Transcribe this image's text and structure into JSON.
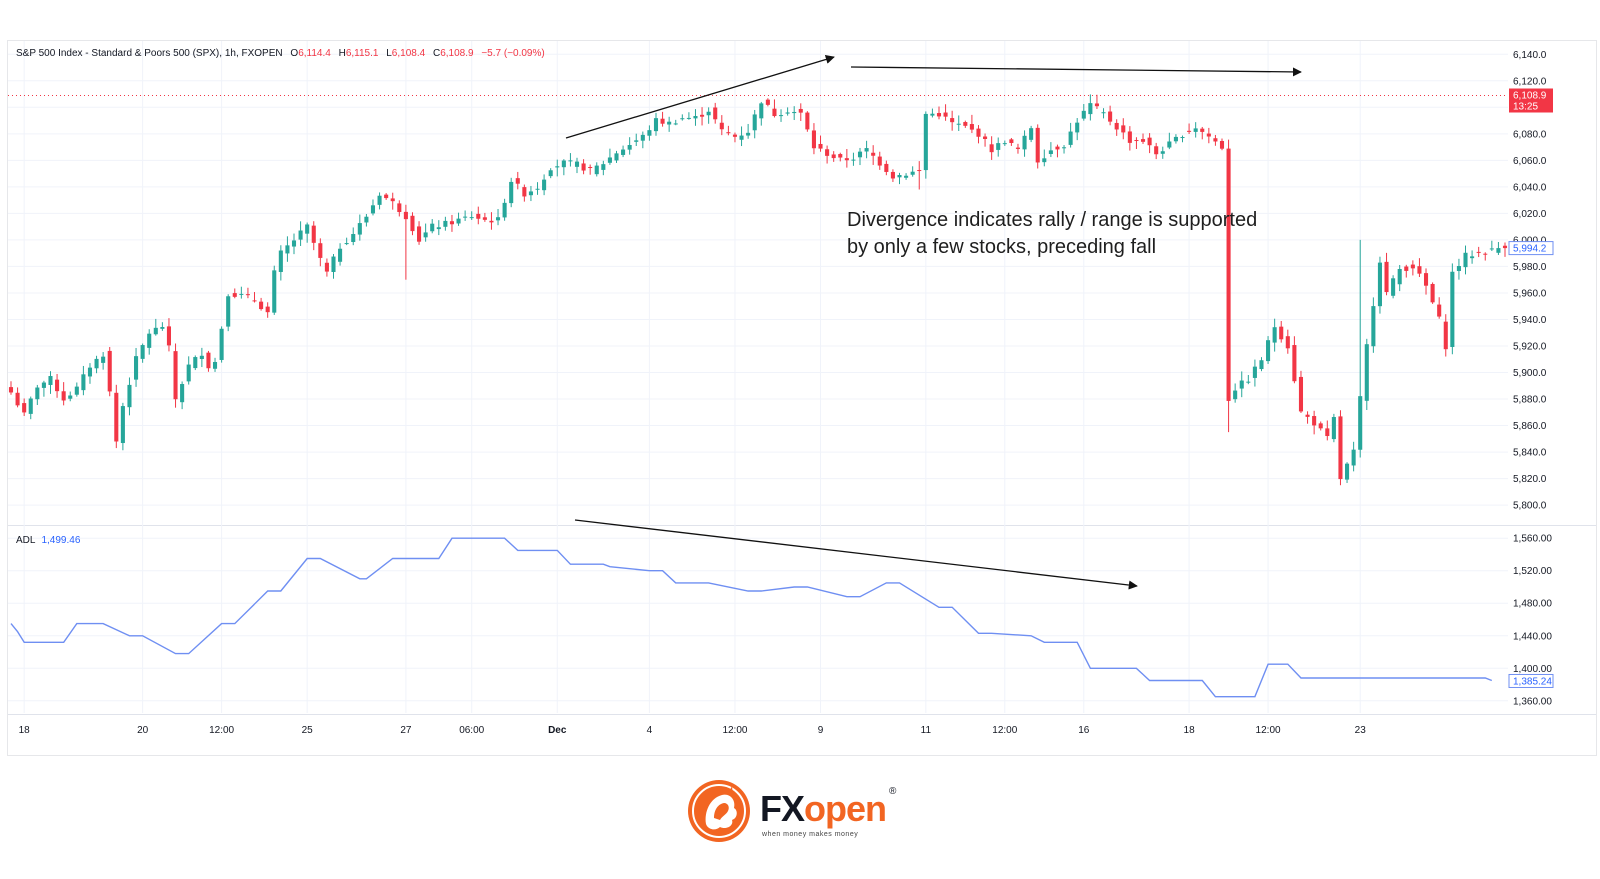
{
  "header": {
    "symbol": "S&P 500 Index - Standard & Poors 500 (SPX), 1h, FXOPEN",
    "open_label": "O",
    "open": "6,114.4",
    "high_label": "H",
    "high": "6,115.1",
    "low_label": "L",
    "low": "6,108.4",
    "close_label": "C",
    "close": "6,108.9",
    "change": "−5.7 (−0.09%)"
  },
  "annotation": "Divergence indicates rally / range is supported\nby only a few stocks, preceding fall",
  "brand": {
    "name_part1": "FX",
    "name_part2": "open",
    "registered": "®",
    "tagline": "when money makes money"
  },
  "colors": {
    "up": "#26a69a",
    "down": "#f23645",
    "adl": "#6f8ff2",
    "axis_text": "#131722",
    "grid": "#f0f3fa",
    "brand_orange": "#f26522"
  },
  "chart_data": [
    {
      "type": "candlestick",
      "title": "S&P 500 Index - Standard & Poors 500 (SPX), 1h, FXOPEN",
      "ylim": [
        5785,
        6150
      ],
      "y_ticks": [
        "6,140.0",
        "6,120.0",
        "6,100.0",
        "6,080.0",
        "6,060.0",
        "6,040.0",
        "6,020.0",
        "6,000.0",
        "5,980.0",
        "5,960.0",
        "5,940.0",
        "5,920.0",
        "5,900.0",
        "5,880.0",
        "5,860.0",
        "5,840.0",
        "5,820.0",
        "5,800.0"
      ],
      "x_ticks": [
        "18",
        "20",
        "12:00",
        "25",
        "27",
        "06:00",
        "Dec",
        "4",
        "12:00",
        "9",
        "11",
        "12:00",
        "16",
        "18",
        "12:00",
        "23"
      ],
      "grid": true,
      "price_line": 6108.9,
      "last_price_label": "6,108.9",
      "countdown_label": "13:25",
      "secondary_price_label": "5,994.2",
      "secondary_price": 5994.2,
      "path": [
        [
          0,
          5885
        ],
        [
          2,
          5868
        ],
        [
          4,
          5890
        ],
        [
          6,
          5895
        ],
        [
          8,
          5880
        ],
        [
          10,
          5888
        ],
        [
          12,
          5905
        ],
        [
          14,
          5914
        ],
        [
          15,
          5885
        ],
        [
          16,
          5848
        ],
        [
          17,
          5875
        ],
        [
          19,
          5910
        ],
        [
          21,
          5930
        ],
        [
          23,
          5935
        ],
        [
          24,
          5918
        ],
        [
          25,
          5880
        ],
        [
          27,
          5905
        ],
        [
          29,
          5915
        ],
        [
          30,
          5905
        ],
        [
          31,
          5908
        ],
        [
          33,
          5960
        ],
        [
          35,
          5958
        ],
        [
          37,
          5955
        ],
        [
          39,
          5945
        ],
        [
          40,
          5975
        ],
        [
          41,
          5990
        ],
        [
          43,
          6000
        ],
        [
          45,
          6010
        ],
        [
          47,
          5985
        ],
        [
          48,
          5975
        ],
        [
          50,
          5995
        ],
        [
          52,
          6005
        ],
        [
          54,
          6018
        ],
        [
          56,
          6035
        ],
        [
          58,
          6028
        ],
        [
          60,
          6018
        ],
        [
          62,
          6000
        ],
        [
          64,
          6010
        ],
        [
          66,
          6012
        ],
        [
          68,
          6015
        ],
        [
          70,
          6018
        ],
        [
          72,
          6015
        ],
        [
          74,
          6015
        ],
        [
          76,
          6045
        ],
        [
          78,
          6035
        ],
        [
          80,
          6040
        ],
        [
          82,
          6055
        ],
        [
          84,
          6058
        ],
        [
          86,
          6057
        ],
        [
          88,
          6052
        ],
        [
          90,
          6058
        ],
        [
          92,
          6066
        ],
        [
          94,
          6072
        ],
        [
          96,
          6078
        ],
        [
          98,
          6090
        ],
        [
          100,
          6088
        ],
        [
          102,
          6092
        ],
        [
          104,
          6092
        ],
        [
          106,
          6098
        ],
        [
          108,
          6082
        ],
        [
          110,
          6078
        ],
        [
          112,
          6082
        ],
        [
          114,
          6105
        ],
        [
          116,
          6095
        ],
        [
          118,
          6098
        ],
        [
          120,
          6095
        ],
        [
          122,
          6070
        ],
        [
          124,
          6065
        ],
        [
          126,
          6060
        ],
        [
          128,
          6062
        ],
        [
          130,
          6068
        ],
        [
          132,
          6058
        ],
        [
          134,
          6048
        ],
        [
          136,
          6050
        ],
        [
          138,
          6052
        ],
        [
          139,
          6095
        ],
        [
          141,
          6095
        ],
        [
          143,
          6088
        ],
        [
          145,
          6085
        ],
        [
          147,
          6080
        ],
        [
          149,
          6068
        ],
        [
          151,
          6075
        ],
        [
          153,
          6068
        ],
        [
          155,
          6085
        ],
        [
          156,
          6060
        ],
        [
          158,
          6068
        ],
        [
          160,
          6072
        ],
        [
          162,
          6090
        ],
        [
          164,
          6102
        ],
        [
          166,
          6095
        ],
        [
          168,
          6085
        ],
        [
          170,
          6075
        ],
        [
          172,
          6075
        ],
        [
          174,
          6065
        ],
        [
          176,
          6072
        ],
        [
          178,
          6080
        ],
        [
          180,
          6085
        ],
        [
          182,
          6078
        ],
        [
          184,
          6070
        ],
        [
          185,
          5880
        ],
        [
          186,
          5888
        ],
        [
          188,
          5895
        ],
        [
          190,
          5910
        ],
        [
          192,
          5935
        ],
        [
          194,
          5920
        ],
        [
          196,
          5870
        ],
        [
          198,
          5862
        ],
        [
          200,
          5850
        ],
        [
          201,
          5865
        ],
        [
          202,
          5820
        ],
        [
          204,
          5840
        ],
        [
          206,
          5920
        ],
        [
          208,
          5985
        ],
        [
          209,
          5960
        ],
        [
          211,
          5978
        ],
        [
          213,
          5980
        ],
        [
          215,
          5965
        ],
        [
          217,
          5940
        ],
        [
          218,
          5920
        ],
        [
          219,
          5975
        ],
        [
          221,
          5988
        ],
        [
          223,
          5990
        ],
        [
          225,
          5992
        ],
        [
          227,
          5996
        ]
      ],
      "extremes": [
        [
          16,
          5843
        ],
        [
          60,
          5970
        ],
        [
          120,
          6103
        ],
        [
          138,
          6038
        ],
        [
          185,
          5855
        ],
        [
          202,
          5815
        ],
        [
          205,
          6000
        ],
        [
          218,
          5914
        ]
      ]
    },
    {
      "type": "line",
      "title": "ADL",
      "value_label": "1,499.46",
      "last_value_label": "1,385.24",
      "ylim": [
        1345,
        1575
      ],
      "y_ticks": [
        "1,560.00",
        "1,520.00",
        "1,480.00",
        "1,440.00",
        "1,400.00",
        "1,360.00"
      ],
      "series": [
        {
          "name": "ADL",
          "x": [
            0,
            1,
            2,
            8,
            10,
            14,
            18,
            20,
            25,
            27,
            32,
            34,
            39,
            41,
            45,
            47,
            53,
            54,
            58,
            59,
            65,
            67,
            75,
            77,
            83,
            85,
            90,
            91,
            97,
            99,
            101,
            104,
            106,
            112,
            114,
            119,
            121,
            127,
            129,
            133,
            135,
            141,
            143,
            147,
            149,
            155,
            157,
            162,
            164,
            171,
            173,
            181,
            183,
            189,
            191,
            194,
            196,
            202,
            204,
            210,
            212,
            221,
            224,
            225
          ],
          "y": [
            1455,
            1445,
            1432,
            1432,
            1455,
            1455,
            1440,
            1440,
            1418,
            1418,
            1455,
            1455,
            1495,
            1495,
            1535,
            1535,
            1510,
            1510,
            1535,
            1535,
            1535,
            1560,
            1560,
            1545,
            1545,
            1528,
            1528,
            1525,
            1520,
            1520,
            1505,
            1505,
            1505,
            1495,
            1495,
            1500,
            1500,
            1488,
            1488,
            1505,
            1505,
            1475,
            1475,
            1443,
            1443,
            1440,
            1432,
            1432,
            1400,
            1400,
            1385,
            1385,
            1365,
            1365,
            1405,
            1405,
            1388,
            1388,
            1388,
            1388,
            1388,
            1388,
            1388,
            1385
          ]
        }
      ]
    }
  ]
}
